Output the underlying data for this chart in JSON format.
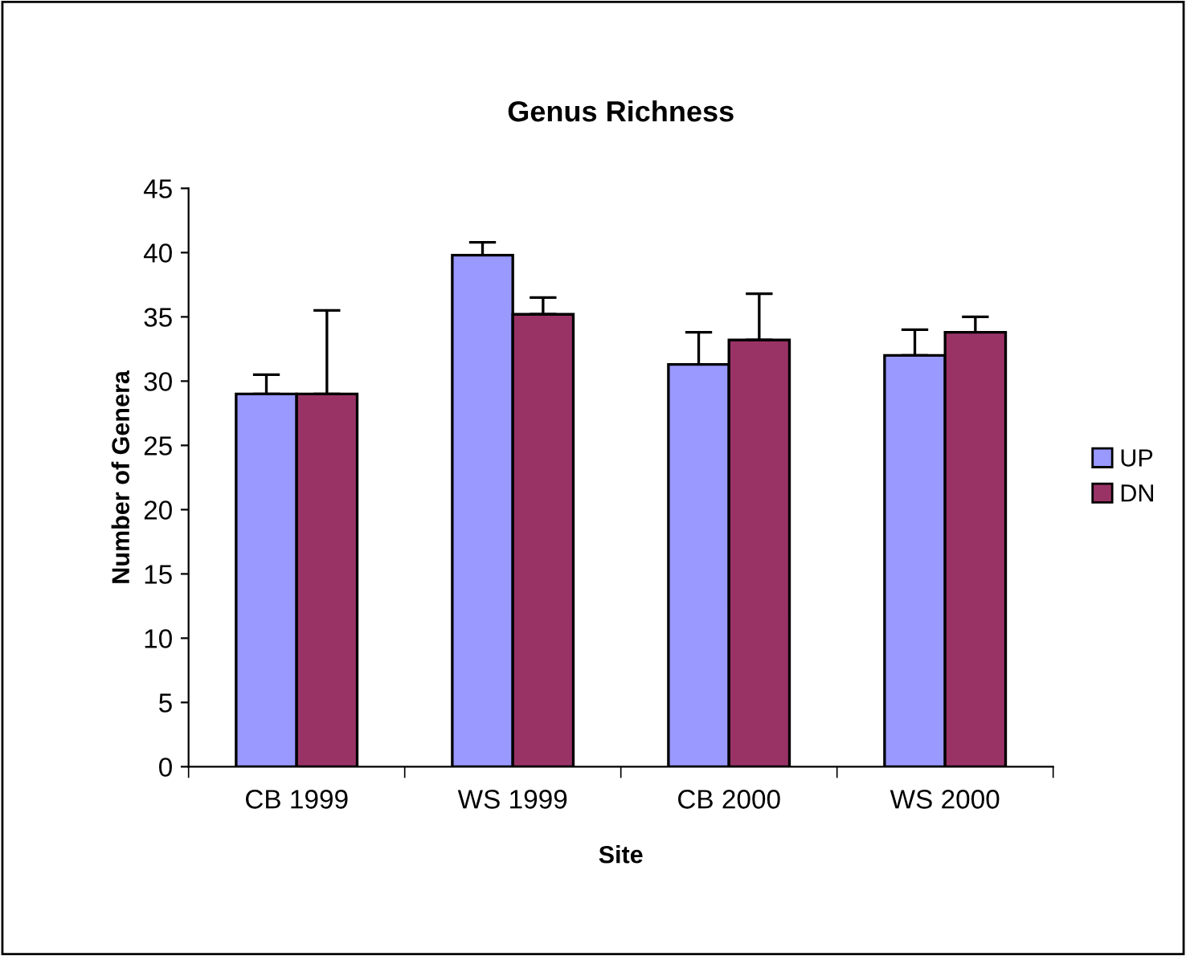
{
  "chart_data": {
    "type": "bar",
    "title": "Genus Richness",
    "xlabel": "Site",
    "ylabel": "Number of Genera",
    "categories": [
      "CB 1999",
      "WS 1999",
      "CB 2000",
      "WS 2000"
    ],
    "series": [
      {
        "name": "UP",
        "color": "#9999ff",
        "values": [
          29.0,
          39.8,
          31.3,
          32.0
        ],
        "errors": [
          [
            29.0,
            30.5
          ],
          [
            39.8,
            40.8
          ],
          [
            31.3,
            33.8
          ],
          [
            32.0,
            34.0
          ]
        ]
      },
      {
        "name": "DN",
        "color": "#993366",
        "values": [
          29.0,
          35.2,
          33.2,
          33.8
        ],
        "errors": [
          [
            29.0,
            35.5
          ],
          [
            35.2,
            36.5
          ],
          [
            33.2,
            36.8
          ],
          [
            33.8,
            35.0
          ]
        ]
      }
    ],
    "ylim": [
      0,
      45
    ],
    "yticks": [
      0,
      5,
      10,
      15,
      20,
      25,
      30,
      35,
      40,
      45
    ],
    "grid": false,
    "legend": "right"
  }
}
